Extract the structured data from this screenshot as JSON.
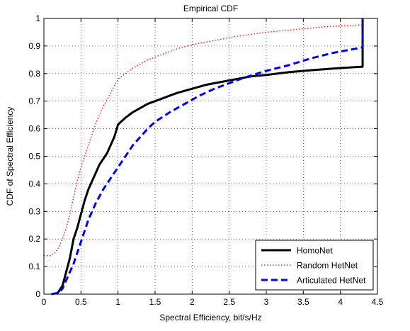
{
  "chart_data": {
    "type": "line",
    "title": "Empirical CDF",
    "xlabel": "Spectral Efficiency, bit/s/Hz",
    "ylabel": "CDF of Spectral Efficiency",
    "xlim": [
      0,
      4.5
    ],
    "ylim": [
      0,
      1
    ],
    "xticks": [
      0,
      0.5,
      1,
      1.5,
      2,
      2.5,
      3,
      3.5,
      4,
      4.5
    ],
    "xtick_labels": [
      "0",
      "0.5",
      "1",
      "1.5",
      "2",
      "2.5",
      "3",
      "3.5",
      "4",
      "4.5"
    ],
    "yticks": [
      0,
      0.1,
      0.2,
      0.3,
      0.4,
      0.5,
      0.6,
      0.7,
      0.8,
      0.9,
      1
    ],
    "ytick_labels": [
      "0",
      "0.1",
      "0.2",
      "0.3",
      "0.4",
      "0.5",
      "0.6",
      "0.7",
      "0.8",
      "0.9",
      "1"
    ],
    "grid": true,
    "legend_position": "bottom-right",
    "series": [
      {
        "name": "HomoNet",
        "color": "#000000",
        "style": "solid",
        "points": [
          [
            0.17,
            0.0
          ],
          [
            0.2,
            0.01
          ],
          [
            0.25,
            0.03
          ],
          [
            0.3,
            0.08
          ],
          [
            0.35,
            0.13
          ],
          [
            0.4,
            0.2
          ],
          [
            0.45,
            0.24
          ],
          [
            0.5,
            0.29
          ],
          [
            0.55,
            0.34
          ],
          [
            0.6,
            0.38
          ],
          [
            0.65,
            0.41
          ],
          [
            0.7,
            0.44
          ],
          [
            0.75,
            0.47
          ],
          [
            0.8,
            0.49
          ],
          [
            0.85,
            0.51
          ],
          [
            0.9,
            0.54
          ],
          [
            0.95,
            0.57
          ],
          [
            1.0,
            0.615
          ],
          [
            1.1,
            0.64
          ],
          [
            1.2,
            0.66
          ],
          [
            1.4,
            0.69
          ],
          [
            1.6,
            0.71
          ],
          [
            1.8,
            0.73
          ],
          [
            2.0,
            0.745
          ],
          [
            2.2,
            0.76
          ],
          [
            2.5,
            0.775
          ],
          [
            2.8,
            0.79
          ],
          [
            3.0,
            0.795
          ],
          [
            3.3,
            0.805
          ],
          [
            3.6,
            0.812
          ],
          [
            4.0,
            0.82
          ],
          [
            4.3,
            0.825
          ],
          [
            4.3,
            1.0
          ]
        ]
      },
      {
        "name": "Random HetNet",
        "color": "#ff0000",
        "style": "dotted",
        "points": [
          [
            0.0,
            0.14
          ],
          [
            0.1,
            0.14
          ],
          [
            0.15,
            0.15
          ],
          [
            0.2,
            0.17
          ],
          [
            0.25,
            0.2
          ],
          [
            0.3,
            0.24
          ],
          [
            0.35,
            0.29
          ],
          [
            0.4,
            0.35
          ],
          [
            0.45,
            0.41
          ],
          [
            0.5,
            0.46
          ],
          [
            0.55,
            0.5
          ],
          [
            0.6,
            0.54
          ],
          [
            0.65,
            0.58
          ],
          [
            0.7,
            0.62
          ],
          [
            0.8,
            0.68
          ],
          [
            0.9,
            0.73
          ],
          [
            1.0,
            0.78
          ],
          [
            1.1,
            0.8
          ],
          [
            1.2,
            0.82
          ],
          [
            1.4,
            0.85
          ],
          [
            1.6,
            0.87
          ],
          [
            1.8,
            0.89
          ],
          [
            2.0,
            0.905
          ],
          [
            2.3,
            0.92
          ],
          [
            2.6,
            0.935
          ],
          [
            3.0,
            0.95
          ],
          [
            3.4,
            0.96
          ],
          [
            3.8,
            0.97
          ],
          [
            4.2,
            0.975
          ],
          [
            4.3,
            0.977
          ],
          [
            4.3,
            1.0
          ]
        ]
      },
      {
        "name": "Articulated HetNet",
        "color": "#0000ff",
        "style": "dashed",
        "points": [
          [
            0.1,
            0.0
          ],
          [
            0.2,
            0.005
          ],
          [
            0.25,
            0.02
          ],
          [
            0.3,
            0.05
          ],
          [
            0.35,
            0.08
          ],
          [
            0.4,
            0.11
          ],
          [
            0.45,
            0.15
          ],
          [
            0.5,
            0.19
          ],
          [
            0.55,
            0.23
          ],
          [
            0.6,
            0.27
          ],
          [
            0.65,
            0.3
          ],
          [
            0.7,
            0.33
          ],
          [
            0.8,
            0.38
          ],
          [
            0.9,
            0.42
          ],
          [
            1.0,
            0.46
          ],
          [
            1.1,
            0.5
          ],
          [
            1.2,
            0.54
          ],
          [
            1.3,
            0.57
          ],
          [
            1.4,
            0.6
          ],
          [
            1.5,
            0.625
          ],
          [
            1.7,
            0.66
          ],
          [
            1.9,
            0.69
          ],
          [
            2.1,
            0.72
          ],
          [
            2.3,
            0.745
          ],
          [
            2.5,
            0.765
          ],
          [
            2.7,
            0.785
          ],
          [
            3.0,
            0.81
          ],
          [
            3.3,
            0.83
          ],
          [
            3.6,
            0.855
          ],
          [
            3.9,
            0.875
          ],
          [
            4.2,
            0.89
          ],
          [
            4.3,
            0.895
          ],
          [
            4.3,
            1.0
          ]
        ]
      }
    ]
  }
}
